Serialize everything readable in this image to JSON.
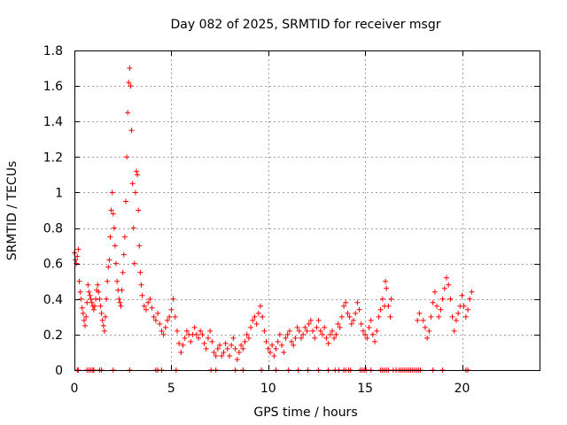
{
  "chart_data": {
    "type": "scatter",
    "title": "Day 082 of 2025, SRMTID for receiver msgr",
    "xlabel": "GPS time / hours",
    "ylabel": "SRMTID / TECUs",
    "xlim": [
      0,
      24
    ],
    "ylim": [
      0,
      1.8
    ],
    "x_ticks": [
      0,
      5,
      10,
      15,
      20
    ],
    "y_ticks": [
      0,
      0.2,
      0.4,
      0.6,
      0.8,
      1,
      1.2,
      1.4,
      1.6,
      1.8
    ],
    "x_tick_labels": [
      "0",
      "5",
      "10",
      "15",
      "20"
    ],
    "y_tick_labels": [
      "0",
      "0.2",
      "0.4",
      "0.6",
      "0.8",
      "1",
      "1.2",
      "1.4",
      "1.6",
      "1.8"
    ],
    "grid": true,
    "marker": "+",
    "series": [
      {
        "name": "SRMTID",
        "color": "#ff0000",
        "points": [
          [
            0.0,
            0.66
          ],
          [
            0.05,
            0.62
          ],
          [
            0.1,
            0.6
          ],
          [
            0.15,
            0.64
          ],
          [
            0.2,
            0.68
          ],
          [
            0.25,
            0.5
          ],
          [
            0.3,
            0.44
          ],
          [
            0.35,
            0.4
          ],
          [
            0.4,
            0.35
          ],
          [
            0.45,
            0.32
          ],
          [
            0.5,
            0.28
          ],
          [
            0.55,
            0.25
          ],
          [
            0.6,
            0.3
          ],
          [
            0.65,
            0.38
          ],
          [
            0.7,
            0.48
          ],
          [
            0.75,
            0.44
          ],
          [
            0.8,
            0.42
          ],
          [
            0.85,
            0.4
          ],
          [
            0.9,
            0.38
          ],
          [
            0.95,
            0.36
          ],
          [
            1.0,
            0.34
          ],
          [
            1.05,
            0.36
          ],
          [
            1.1,
            0.4
          ],
          [
            1.15,
            0.45
          ],
          [
            1.2,
            0.48
          ],
          [
            1.25,
            0.44
          ],
          [
            1.3,
            0.4
          ],
          [
            1.35,
            0.36
          ],
          [
            1.4,
            0.32
          ],
          [
            1.45,
            0.28
          ],
          [
            1.5,
            0.25
          ],
          [
            1.55,
            0.22
          ],
          [
            1.6,
            0.3
          ],
          [
            1.65,
            0.4
          ],
          [
            1.7,
            0.5
          ],
          [
            1.75,
            0.58
          ],
          [
            1.8,
            0.62
          ],
          [
            1.85,
            0.75
          ],
          [
            1.9,
            0.9
          ],
          [
            1.95,
            1.0
          ],
          [
            2.0,
            0.88
          ],
          [
            2.05,
            0.8
          ],
          [
            2.1,
            0.7
          ],
          [
            2.15,
            0.6
          ],
          [
            2.2,
            0.5
          ],
          [
            2.25,
            0.45
          ],
          [
            2.3,
            0.4
          ],
          [
            2.35,
            0.38
          ],
          [
            2.4,
            0.36
          ],
          [
            2.45,
            0.45
          ],
          [
            2.5,
            0.55
          ],
          [
            2.55,
            0.65
          ],
          [
            2.6,
            0.75
          ],
          [
            2.65,
            0.95
          ],
          [
            2.7,
            1.2
          ],
          [
            2.75,
            1.45
          ],
          [
            2.8,
            1.62
          ],
          [
            2.85,
            1.7
          ],
          [
            2.9,
            1.6
          ],
          [
            2.95,
            1.35
          ],
          [
            3.0,
            1.05
          ],
          [
            3.05,
            0.8
          ],
          [
            3.1,
            0.6
          ],
          [
            3.15,
            1.0
          ],
          [
            3.2,
            1.12
          ],
          [
            3.25,
            1.1
          ],
          [
            3.3,
            0.9
          ],
          [
            3.35,
            0.7
          ],
          [
            3.4,
            0.55
          ],
          [
            3.45,
            0.48
          ],
          [
            3.5,
            0.42
          ],
          [
            3.6,
            0.36
          ],
          [
            3.7,
            0.34
          ],
          [
            3.8,
            0.38
          ],
          [
            3.9,
            0.4
          ],
          [
            4.0,
            0.35
          ],
          [
            4.1,
            0.3
          ],
          [
            4.2,
            0.28
          ],
          [
            4.3,
            0.32
          ],
          [
            4.4,
            0.26
          ],
          [
            4.5,
            0.22
          ],
          [
            4.6,
            0.2
          ],
          [
            4.7,
            0.24
          ],
          [
            4.8,
            0.28
          ],
          [
            4.9,
            0.3
          ],
          [
            5.0,
            0.34
          ],
          [
            5.1,
            0.4
          ],
          [
            5.2,
            0.3
          ],
          [
            5.3,
            0.22
          ],
          [
            5.4,
            0.15
          ],
          [
            5.5,
            0.1
          ],
          [
            5.6,
            0.14
          ],
          [
            5.7,
            0.18
          ],
          [
            5.8,
            0.22
          ],
          [
            5.9,
            0.2
          ],
          [
            6.0,
            0.16
          ],
          [
            6.1,
            0.2
          ],
          [
            6.2,
            0.24
          ],
          [
            6.3,
            0.2
          ],
          [
            6.4,
            0.18
          ],
          [
            6.5,
            0.22
          ],
          [
            6.6,
            0.2
          ],
          [
            6.7,
            0.15
          ],
          [
            6.8,
            0.12
          ],
          [
            6.9,
            0.18
          ],
          [
            7.0,
            0.22
          ],
          [
            7.1,
            0.16
          ],
          [
            7.2,
            0.1
          ],
          [
            7.3,
            0.08
          ],
          [
            7.4,
            0.12
          ],
          [
            7.5,
            0.14
          ],
          [
            7.6,
            0.08
          ],
          [
            7.7,
            0.1
          ],
          [
            7.8,
            0.15
          ],
          [
            7.9,
            0.12
          ],
          [
            8.0,
            0.08
          ],
          [
            8.1,
            0.14
          ],
          [
            8.2,
            0.18
          ],
          [
            8.3,
            0.12
          ],
          [
            8.4,
            0.06
          ],
          [
            8.5,
            0.1
          ],
          [
            8.6,
            0.14
          ],
          [
            8.7,
            0.12
          ],
          [
            8.8,
            0.16
          ],
          [
            8.9,
            0.2
          ],
          [
            9.0,
            0.18
          ],
          [
            9.1,
            0.24
          ],
          [
            9.2,
            0.28
          ],
          [
            9.3,
            0.3
          ],
          [
            9.4,
            0.26
          ],
          [
            9.5,
            0.32
          ],
          [
            9.6,
            0.36
          ],
          [
            9.7,
            0.3
          ],
          [
            9.8,
            0.22
          ],
          [
            9.9,
            0.16
          ],
          [
            10.0,
            0.12
          ],
          [
            10.1,
            0.1
          ],
          [
            10.2,
            0.14
          ],
          [
            10.3,
            0.08
          ],
          [
            10.4,
            0.12
          ],
          [
            10.5,
            0.16
          ],
          [
            10.6,
            0.2
          ],
          [
            10.7,
            0.14
          ],
          [
            10.8,
            0.1
          ],
          [
            10.9,
            0.18
          ],
          [
            11.0,
            0.2
          ],
          [
            11.1,
            0.22
          ],
          [
            11.2,
            0.16
          ],
          [
            11.3,
            0.14
          ],
          [
            11.4,
            0.18
          ],
          [
            11.5,
            0.24
          ],
          [
            11.6,
            0.22
          ],
          [
            11.7,
            0.18
          ],
          [
            11.8,
            0.2
          ],
          [
            11.9,
            0.24
          ],
          [
            12.0,
            0.22
          ],
          [
            12.1,
            0.26
          ],
          [
            12.2,
            0.28
          ],
          [
            12.3,
            0.22
          ],
          [
            12.4,
            0.18
          ],
          [
            12.5,
            0.24
          ],
          [
            12.6,
            0.28
          ],
          [
            12.7,
            0.22
          ],
          [
            12.8,
            0.2
          ],
          [
            12.9,
            0.24
          ],
          [
            13.0,
            0.18
          ],
          [
            13.1,
            0.15
          ],
          [
            13.2,
            0.2
          ],
          [
            13.3,
            0.22
          ],
          [
            13.4,
            0.18
          ],
          [
            13.5,
            0.2
          ],
          [
            13.6,
            0.26
          ],
          [
            13.7,
            0.24
          ],
          [
            13.8,
            0.3
          ],
          [
            13.9,
            0.36
          ],
          [
            14.0,
            0.38
          ],
          [
            14.1,
            0.32
          ],
          [
            14.2,
            0.3
          ],
          [
            14.3,
            0.26
          ],
          [
            14.4,
            0.28
          ],
          [
            14.5,
            0.32
          ],
          [
            14.6,
            0.38
          ],
          [
            14.7,
            0.34
          ],
          [
            14.8,
            0.26
          ],
          [
            14.9,
            0.22
          ],
          [
            15.0,
            0.2
          ],
          [
            15.1,
            0.18
          ],
          [
            15.2,
            0.24
          ],
          [
            15.3,
            0.28
          ],
          [
            15.4,
            0.2
          ],
          [
            15.5,
            0.16
          ],
          [
            15.6,
            0.22
          ],
          [
            15.7,
            0.3
          ],
          [
            15.8,
            0.34
          ],
          [
            15.9,
            0.4
          ],
          [
            16.0,
            0.36
          ],
          [
            16.05,
            0.5
          ],
          [
            16.1,
            0.46
          ],
          [
            16.2,
            0.36
          ],
          [
            16.3,
            0.3
          ],
          [
            16.35,
            0.4
          ],
          [
            17.7,
            0.28
          ],
          [
            17.8,
            0.32
          ],
          [
            18.0,
            0.28
          ],
          [
            18.1,
            0.24
          ],
          [
            18.2,
            0.18
          ],
          [
            18.3,
            0.22
          ],
          [
            18.4,
            0.3
          ],
          [
            18.5,
            0.38
          ],
          [
            18.6,
            0.44
          ],
          [
            18.7,
            0.36
          ],
          [
            18.8,
            0.3
          ],
          [
            18.9,
            0.34
          ],
          [
            19.0,
            0.4
          ],
          [
            19.1,
            0.46
          ],
          [
            19.2,
            0.52
          ],
          [
            19.3,
            0.48
          ],
          [
            19.4,
            0.4
          ],
          [
            19.5,
            0.3
          ],
          [
            19.6,
            0.22
          ],
          [
            19.7,
            0.28
          ],
          [
            19.8,
            0.32
          ],
          [
            19.9,
            0.36
          ],
          [
            20.0,
            0.42
          ],
          [
            20.1,
            0.36
          ],
          [
            20.2,
            0.3
          ],
          [
            20.3,
            0.34
          ],
          [
            20.4,
            0.4
          ],
          [
            20.5,
            0.44
          ]
        ],
        "zero_points": [
          0.15,
          0.2,
          0.65,
          0.75,
          0.85,
          0.95,
          1.0,
          1.3,
          1.4,
          2.0,
          2.85,
          4.2,
          4.3,
          4.5,
          5.25,
          7.05,
          7.3,
          8.3,
          8.7,
          9.65,
          10.4,
          11.05,
          11.55,
          12.05,
          12.6,
          13.1,
          13.45,
          13.65,
          13.9,
          14.0,
          14.15,
          14.25,
          14.75,
          14.85,
          14.95,
          15.05,
          15.3,
          15.8,
          15.9,
          16.0,
          16.1,
          16.2,
          16.45,
          16.6,
          16.75,
          16.85,
          16.95,
          17.05,
          17.15,
          17.25,
          17.35,
          17.45,
          17.55,
          17.65,
          17.75,
          17.85,
          18.5,
          19.0,
          20.2,
          20.3
        ]
      }
    ]
  }
}
